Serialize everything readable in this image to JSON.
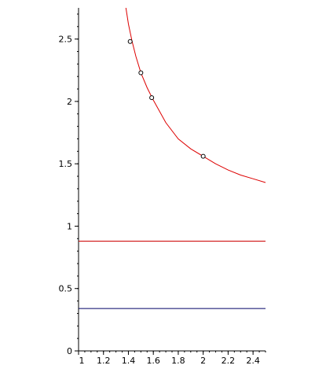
{
  "chart_data": {
    "type": "line",
    "title": "",
    "xlabel": "",
    "ylabel": "",
    "xlim": [
      1,
      2.5
    ],
    "ylim": [
      0,
      2.75
    ],
    "grid": false,
    "x_ticks": [
      {
        "value": 1,
        "label": "1"
      },
      {
        "value": 1.2,
        "label": "1.2"
      },
      {
        "value": 1.4,
        "label": "1.4"
      },
      {
        "value": 1.6,
        "label": "1.6"
      },
      {
        "value": 1.8,
        "label": "1.8"
      },
      {
        "value": 2,
        "label": "2"
      },
      {
        "value": 2.2,
        "label": "2.2"
      },
      {
        "value": 2.4,
        "label": "2.4"
      }
    ],
    "y_ticks": [
      {
        "value": 0,
        "label": "0"
      },
      {
        "value": 0.5,
        "label": "0.5"
      },
      {
        "value": 1,
        "label": "1"
      },
      {
        "value": 1.5,
        "label": "1.5"
      },
      {
        "value": 2,
        "label": "2"
      },
      {
        "value": 2.5,
        "label": "2.5"
      }
    ],
    "series": [
      {
        "color": "#dd0000",
        "style": "curve",
        "x": [
          1.38,
          1.4,
          1.43,
          1.46,
          1.5,
          1.55,
          1.6,
          1.7,
          1.8,
          1.9,
          2.0,
          2.1,
          2.2,
          2.3,
          2.4,
          2.5
        ],
        "y": [
          2.75,
          2.62,
          2.48,
          2.36,
          2.23,
          2.11,
          2.01,
          1.83,
          1.7,
          1.62,
          1.56,
          1.5,
          1.45,
          1.41,
          1.38,
          1.35
        ]
      },
      {
        "color": "#cc0000",
        "style": "hline",
        "x": [
          1,
          2.5
        ],
        "y": [
          0.88,
          0.88
        ]
      },
      {
        "color": "#000066",
        "style": "hline",
        "x": [
          1,
          2.5
        ],
        "y": [
          0.34,
          0.34
        ]
      }
    ],
    "points": [
      {
        "x": 1.414,
        "y": 2.48
      },
      {
        "x": 1.5,
        "y": 2.23
      },
      {
        "x": 1.587,
        "y": 2.03
      },
      {
        "x": 2.0,
        "y": 1.56
      }
    ]
  }
}
